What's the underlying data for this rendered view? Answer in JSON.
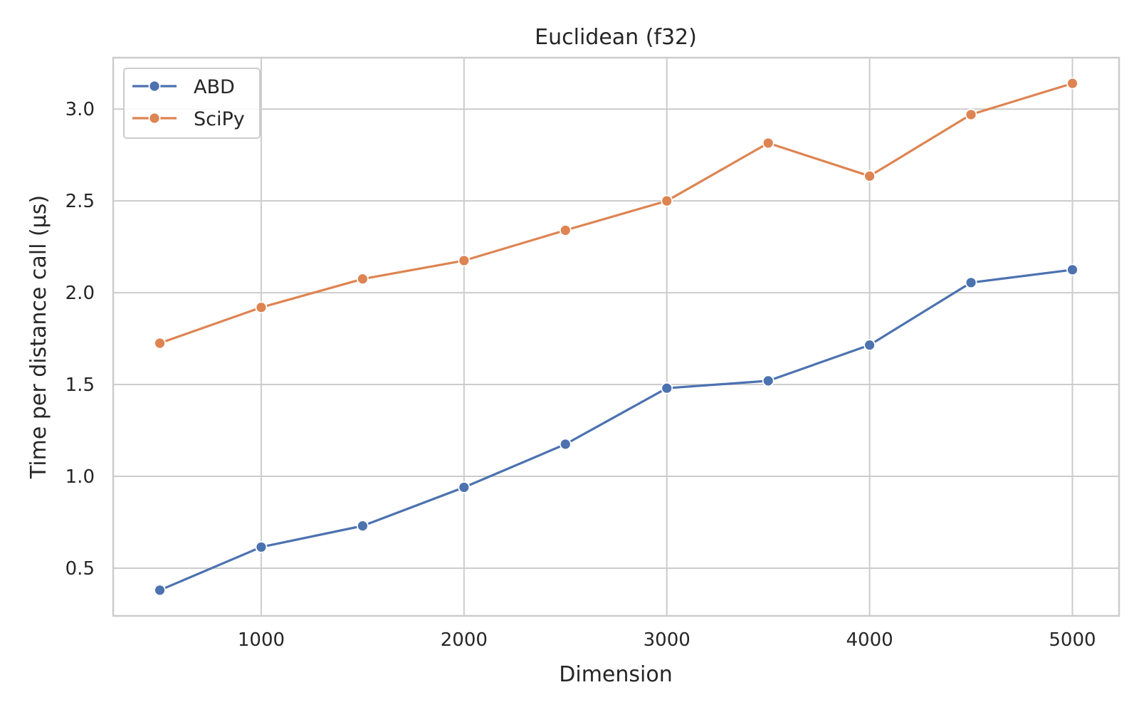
{
  "chart_data": {
    "type": "line",
    "title": "Euclidean (f32)",
    "xlabel": "Dimension",
    "ylabel": "Time per distance call (µs)",
    "x": [
      500,
      1000,
      1500,
      2000,
      2500,
      3000,
      3500,
      4000,
      4500,
      5000
    ],
    "xlim": [
      270,
      5230
    ],
    "ylim": [
      0.24,
      3.28
    ],
    "xticks": [
      1000,
      2000,
      3000,
      4000,
      5000
    ],
    "xtick_labels": [
      "1000",
      "2000",
      "3000",
      "4000",
      "5000"
    ],
    "yticks": [
      0.5,
      1.0,
      1.5,
      2.0,
      2.5,
      3.0
    ],
    "ytick_labels": [
      "0.5",
      "1.0",
      "1.5",
      "2.0",
      "2.5",
      "3.0"
    ],
    "grid": true,
    "legend_position": "top-left",
    "series": [
      {
        "name": "ABD",
        "color": "#4c72b0",
        "values": [
          0.38,
          0.615,
          0.73,
          0.94,
          1.175,
          1.48,
          1.52,
          1.715,
          2.055,
          2.125
        ]
      },
      {
        "name": "SciPy",
        "color": "#dd8452",
        "values": [
          1.725,
          1.92,
          2.075,
          2.175,
          2.34,
          2.5,
          2.815,
          2.635,
          2.97,
          3.14
        ]
      }
    ]
  }
}
